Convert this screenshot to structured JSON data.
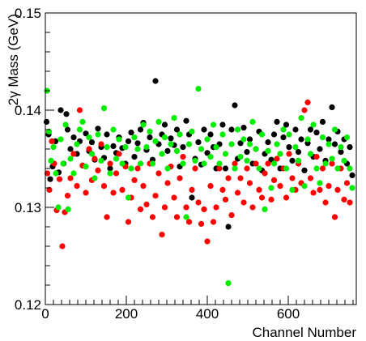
{
  "chart_data": {
    "type": "scatter",
    "title": "",
    "xlabel": "Channel Number",
    "ylabel": "2γ Mass (GeV)",
    "xlim": [
      0,
      768
    ],
    "ylim": [
      0.12,
      0.15
    ],
    "x_ticks": [
      0,
      200,
      400,
      600
    ],
    "x_tick_labels": [
      "0",
      "200",
      "400",
      "600"
    ],
    "y_ticks": [
      0.12,
      0.13,
      0.14,
      0.15
    ],
    "y_tick_labels": [
      "0.12",
      "0.13",
      "0.14",
      "0.15"
    ],
    "grid": false,
    "legend": "none",
    "series": [
      {
        "color": "#000000",
        "points": [
          [
            3,
            0.1388
          ],
          [
            8,
            0.1375
          ],
          [
            12,
            0.1329
          ],
          [
            18,
            0.1342
          ],
          [
            25,
            0.1368
          ],
          [
            33,
            0.1336
          ],
          [
            38,
            0.14
          ],
          [
            45,
            0.1345
          ],
          [
            52,
            0.1396
          ],
          [
            55,
            0.138
          ],
          [
            62,
            0.136
          ],
          [
            70,
            0.1372
          ],
          [
            78,
            0.1355
          ],
          [
            85,
            0.1368
          ],
          [
            92,
            0.1343
          ],
          [
            100,
            0.1376
          ],
          [
            108,
            0.1358
          ],
          [
            115,
            0.1367
          ],
          [
            122,
            0.1349
          ],
          [
            130,
            0.1381
          ],
          [
            138,
            0.1362
          ],
          [
            145,
            0.1351
          ],
          [
            152,
            0.1375
          ],
          [
            160,
            0.134
          ],
          [
            168,
            0.1363
          ],
          [
            175,
            0.1356
          ],
          [
            182,
            0.1372
          ],
          [
            190,
            0.1361
          ],
          [
            198,
            0.1345
          ],
          [
            205,
            0.1368
          ],
          [
            212,
            0.1377
          ],
          [
            220,
            0.1352
          ],
          [
            228,
            0.1366
          ],
          [
            235,
            0.138
          ],
          [
            242,
            0.1387
          ],
          [
            250,
            0.1359
          ],
          [
            258,
            0.1372
          ],
          [
            265,
            0.1349
          ],
          [
            272,
            0.143
          ],
          [
            280,
            0.1365
          ],
          [
            288,
            0.1375
          ],
          [
            295,
            0.1385
          ],
          [
            302,
            0.1358
          ],
          [
            310,
            0.1371
          ],
          [
            318,
            0.1364
          ],
          [
            325,
            0.138
          ],
          [
            332,
            0.1342
          ],
          [
            340,
            0.1362
          ],
          [
            348,
            0.1389
          ],
          [
            355,
            0.1375
          ],
          [
            362,
            0.131
          ],
          [
            370,
            0.135
          ],
          [
            378,
            0.1367
          ],
          [
            385,
            0.1344
          ],
          [
            392,
            0.138
          ],
          [
            400,
            0.1356
          ],
          [
            408,
            0.1375
          ],
          [
            415,
            0.1362
          ],
          [
            422,
            0.134
          ],
          [
            430,
            0.1365
          ],
          [
            438,
            0.1385
          ],
          [
            445,
            0.134
          ],
          [
            452,
            0.128
          ],
          [
            460,
            0.138
          ],
          [
            468,
            0.1405
          ],
          [
            475,
            0.135
          ],
          [
            482,
            0.1366
          ],
          [
            490,
            0.1382
          ],
          [
            498,
            0.1357
          ],
          [
            505,
            0.137
          ],
          [
            512,
            0.1345
          ],
          [
            520,
            0.136
          ],
          [
            528,
            0.1378
          ],
          [
            535,
            0.1338
          ],
          [
            542,
            0.1355
          ],
          [
            550,
            0.1367
          ],
          [
            558,
            0.1349
          ],
          [
            565,
            0.1375
          ],
          [
            572,
            0.1388
          ],
          [
            580,
            0.134
          ],
          [
            588,
            0.1372
          ],
          [
            595,
            0.1385
          ],
          [
            602,
            0.1362
          ],
          [
            610,
            0.1348
          ],
          [
            618,
            0.138
          ],
          [
            625,
            0.1357
          ],
          [
            632,
            0.137
          ],
          [
            640,
            0.1338
          ],
          [
            648,
            0.1366
          ],
          [
            655,
            0.138
          ],
          [
            662,
            0.1352
          ],
          [
            670,
            0.1377
          ],
          [
            678,
            0.136
          ],
          [
            685,
            0.1388
          ],
          [
            692,
            0.1348
          ],
          [
            700,
            0.137
          ],
          [
            708,
            0.1403
          ],
          [
            715,
            0.1365
          ],
          [
            722,
            0.1378
          ],
          [
            730,
            0.1357
          ],
          [
            738,
            0.137
          ],
          [
            745,
            0.1345
          ],
          [
            752,
            0.1362
          ],
          [
            758,
            0.1333
          ]
        ]
      },
      {
        "color": "#ff0000",
        "points": [
          [
            5,
            0.1335
          ],
          [
            10,
            0.1318
          ],
          [
            16,
            0.1368
          ],
          [
            22,
            0.1345
          ],
          [
            28,
            0.1297
          ],
          [
            35,
            0.1329
          ],
          [
            42,
            0.126
          ],
          [
            48,
            0.1295
          ],
          [
            55,
            0.1312
          ],
          [
            62,
            0.133
          ],
          [
            70,
            0.1355
          ],
          [
            78,
            0.1322
          ],
          [
            85,
            0.14
          ],
          [
            92,
            0.1343
          ],
          [
            100,
            0.1315
          ],
          [
            108,
            0.136
          ],
          [
            115,
            0.1328
          ],
          [
            122,
            0.135
          ],
          [
            130,
            0.1338
          ],
          [
            138,
            0.1365
          ],
          [
            145,
            0.1322
          ],
          [
            152,
            0.129
          ],
          [
            160,
            0.1345
          ],
          [
            168,
            0.1315
          ],
          [
            175,
            0.1335
          ],
          [
            182,
            0.1355
          ],
          [
            190,
            0.1318
          ],
          [
            198,
            0.1342
          ],
          [
            205,
            0.1285
          ],
          [
            212,
            0.131
          ],
          [
            220,
            0.1328
          ],
          [
            228,
            0.134
          ],
          [
            235,
            0.1298
          ],
          [
            242,
            0.1322
          ],
          [
            250,
            0.1303
          ],
          [
            258,
            0.1345
          ],
          [
            265,
            0.129
          ],
          [
            272,
            0.1312
          ],
          [
            280,
            0.1335
          ],
          [
            288,
            0.1272
          ],
          [
            295,
            0.13
          ],
          [
            302,
            0.1325
          ],
          [
            310,
            0.1342
          ],
          [
            318,
            0.131
          ],
          [
            325,
            0.129
          ],
          [
            332,
            0.133
          ],
          [
            340,
            0.1352
          ],
          [
            348,
            0.13
          ],
          [
            355,
            0.1285
          ],
          [
            362,
            0.1318
          ],
          [
            370,
            0.134
          ],
          [
            378,
            0.1305
          ],
          [
            385,
            0.1283
          ],
          [
            392,
            0.1298
          ],
          [
            400,
            0.1265
          ],
          [
            408,
            0.1322
          ],
          [
            415,
            0.1285
          ],
          [
            422,
            0.13
          ],
          [
            430,
            0.134
          ],
          [
            438,
            0.1318
          ],
          [
            445,
            0.1308
          ],
          [
            452,
            0.133
          ],
          [
            460,
            0.1292
          ],
          [
            468,
            0.1345
          ],
          [
            475,
            0.1315
          ],
          [
            482,
            0.133
          ],
          [
            490,
            0.1305
          ],
          [
            498,
            0.134
          ],
          [
            505,
            0.1325
          ],
          [
            512,
            0.13
          ],
          [
            520,
            0.1345
          ],
          [
            528,
            0.1318
          ],
          [
            535,
            0.131
          ],
          [
            542,
            0.1335
          ],
          [
            550,
            0.1345
          ],
          [
            558,
            0.1308
          ],
          [
            565,
            0.1328
          ],
          [
            572,
            0.135
          ],
          [
            580,
            0.1322
          ],
          [
            588,
            0.134
          ],
          [
            595,
            0.131
          ],
          [
            602,
            0.1355
          ],
          [
            610,
            0.133
          ],
          [
            618,
            0.1318
          ],
          [
            625,
            0.1345
          ],
          [
            632,
            0.1325
          ],
          [
            640,
            0.14
          ],
          [
            648,
            0.1408
          ],
          [
            655,
            0.133
          ],
          [
            662,
            0.1315
          ],
          [
            670,
            0.1352
          ],
          [
            678,
            0.1318
          ],
          [
            685,
            0.134
          ],
          [
            692,
            0.1305
          ],
          [
            700,
            0.1322
          ],
          [
            708,
            0.1345
          ],
          [
            715,
            0.129
          ],
          [
            722,
            0.1318
          ],
          [
            730,
            0.134
          ],
          [
            738,
            0.1308
          ],
          [
            745,
            0.1325
          ],
          [
            752,
            0.1305
          ]
        ]
      },
      {
        "color": "#00ee00",
        "points": [
          [
            4,
            0.142
          ],
          [
            9,
            0.1378
          ],
          [
            14,
            0.1348
          ],
          [
            20,
            0.1362
          ],
          [
            26,
            0.1335
          ],
          [
            32,
            0.13
          ],
          [
            38,
            0.137
          ],
          [
            44,
            0.1345
          ],
          [
            50,
            0.1385
          ],
          [
            56,
            0.1298
          ],
          [
            62,
            0.135
          ],
          [
            70,
            0.1335
          ],
          [
            78,
            0.1365
          ],
          [
            85,
            0.138
          ],
          [
            92,
            0.1388
          ],
          [
            100,
            0.1342
          ],
          [
            108,
            0.1372
          ],
          [
            115,
            0.1355
          ],
          [
            122,
            0.133
          ],
          [
            130,
            0.1375
          ],
          [
            138,
            0.1348
          ],
          [
            145,
            0.1402
          ],
          [
            152,
            0.1362
          ],
          [
            160,
            0.1335
          ],
          [
            168,
            0.138
          ],
          [
            175,
            0.135
          ],
          [
            182,
            0.137
          ],
          [
            190,
            0.1345
          ],
          [
            198,
            0.1362
          ],
          [
            205,
            0.131
          ],
          [
            212,
            0.134
          ],
          [
            220,
            0.1372
          ],
          [
            228,
            0.136
          ],
          [
            235,
            0.1345
          ],
          [
            242,
            0.1385
          ],
          [
            250,
            0.1362
          ],
          [
            258,
            0.1378
          ],
          [
            265,
            0.1345
          ],
          [
            272,
            0.1368
          ],
          [
            280,
            0.1388
          ],
          [
            288,
            0.1355
          ],
          [
            295,
            0.1372
          ],
          [
            302,
            0.134
          ],
          [
            310,
            0.1365
          ],
          [
            318,
            0.1392
          ],
          [
            325,
            0.1358
          ],
          [
            332,
            0.1375
          ],
          [
            340,
            0.1345
          ],
          [
            348,
            0.129
          ],
          [
            355,
            0.1365
          ],
          [
            362,
            0.1378
          ],
          [
            370,
            0.1348
          ],
          [
            378,
            0.1422
          ],
          [
            385,
            0.136
          ],
          [
            392,
            0.1345
          ],
          [
            400,
            0.137
          ],
          [
            408,
            0.1352
          ],
          [
            415,
            0.1385
          ],
          [
            422,
            0.1362
          ],
          [
            430,
            0.1345
          ],
          [
            438,
            0.1375
          ],
          [
            445,
            0.1355
          ],
          [
            452,
            0.1222
          ],
          [
            460,
            0.1365
          ],
          [
            468,
            0.134
          ],
          [
            475,
            0.138
          ],
          [
            482,
            0.1352
          ],
          [
            490,
            0.137
          ],
          [
            498,
            0.1348
          ],
          [
            505,
            0.1365
          ],
          [
            512,
            0.1388
          ],
          [
            520,
            0.136
          ],
          [
            528,
            0.134
          ],
          [
            535,
            0.1375
          ],
          [
            542,
            0.1298
          ],
          [
            550,
            0.1358
          ],
          [
            558,
            0.132
          ],
          [
            565,
            0.1345
          ],
          [
            572,
            0.1365
          ],
          [
            580,
            0.1355
          ],
          [
            588,
            0.138
          ],
          [
            595,
            0.134
          ],
          [
            602,
            0.1375
          ],
          [
            610,
            0.1318
          ],
          [
            618,
            0.1362
          ],
          [
            625,
            0.1348
          ],
          [
            632,
            0.1392
          ],
          [
            640,
            0.1322
          ],
          [
            648,
            0.137
          ],
          [
            655,
            0.1355
          ],
          [
            662,
            0.1385
          ],
          [
            670,
            0.134
          ],
          [
            678,
            0.1325
          ],
          [
            685,
            0.1372
          ],
          [
            692,
            0.1345
          ],
          [
            700,
            0.1365
          ],
          [
            708,
            0.135
          ],
          [
            715,
            0.138
          ],
          [
            722,
            0.134
          ],
          [
            730,
            0.1362
          ],
          [
            738,
            0.1348
          ],
          [
            745,
            0.1372
          ],
          [
            752,
            0.134
          ],
          [
            758,
            0.132
          ]
        ]
      }
    ]
  }
}
